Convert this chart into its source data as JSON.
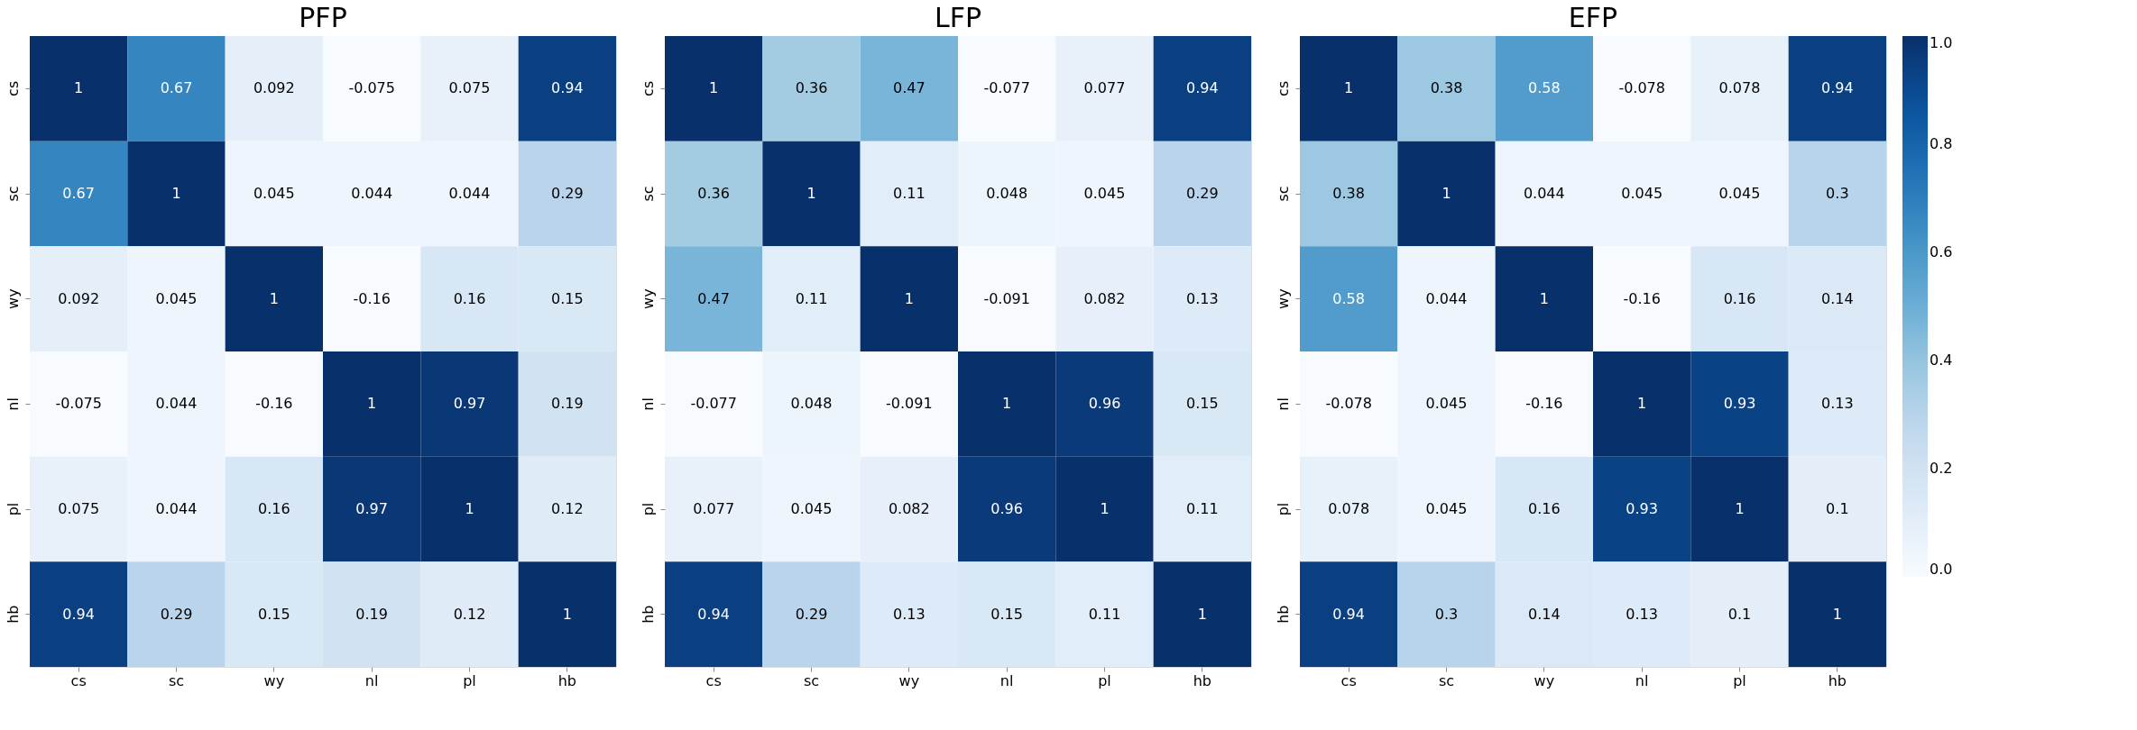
{
  "chart_data": [
    {
      "type": "heatmap",
      "title": "PFP",
      "categories": [
        "cs",
        "sc",
        "wy",
        "nl",
        "pl",
        "hb"
      ],
      "y_categories": [
        "cs",
        "sc",
        "wy",
        "nl",
        "pl",
        "hb"
      ],
      "data_labels": true,
      "cells": [
        [
          1,
          0.67,
          0.092,
          -0.075,
          0.075,
          0.94
        ],
        [
          0.67,
          1,
          0.045,
          0.044,
          0.044,
          0.29
        ],
        [
          0.092,
          0.045,
          1,
          -0.16,
          0.16,
          0.15
        ],
        [
          -0.075,
          0.044,
          -0.16,
          1,
          0.97,
          0.19
        ],
        [
          0.075,
          0.044,
          0.16,
          0.97,
          1,
          0.12
        ],
        [
          0.94,
          0.29,
          0.15,
          0.19,
          0.12,
          1
        ]
      ]
    },
    {
      "type": "heatmap",
      "title": "LFP",
      "categories": [
        "cs",
        "sc",
        "wy",
        "nl",
        "pl",
        "hb"
      ],
      "y_categories": [
        "cs",
        "sc",
        "wy",
        "nl",
        "pl",
        "hb"
      ],
      "data_labels": true,
      "cells": [
        [
          1,
          0.36,
          0.47,
          -0.077,
          0.077,
          0.94
        ],
        [
          0.36,
          1,
          0.11,
          0.048,
          0.045,
          0.29
        ],
        [
          0.47,
          0.11,
          1,
          -0.091,
          0.082,
          0.13
        ],
        [
          -0.077,
          0.048,
          -0.091,
          1,
          0.96,
          0.15
        ],
        [
          0.077,
          0.045,
          0.082,
          0.96,
          1,
          0.11
        ],
        [
          0.94,
          0.29,
          0.13,
          0.15,
          0.11,
          1
        ]
      ]
    },
    {
      "type": "heatmap",
      "title": "EFP",
      "categories": [
        "cs",
        "sc",
        "wy",
        "nl",
        "pl",
        "hb"
      ],
      "y_categories": [
        "cs",
        "sc",
        "wy",
        "nl",
        "pl",
        "hb"
      ],
      "data_labels": true,
      "clim": [
        0,
        1
      ],
      "cticks": [
        {
          "value": 0,
          "label": "0.0"
        },
        {
          "value": 0.2,
          "label": "0.2"
        },
        {
          "value": 0.4,
          "label": "0.4"
        },
        {
          "value": 0.6,
          "label": "0.6"
        },
        {
          "value": 0.8,
          "label": "0.8"
        },
        {
          "value": 1,
          "label": "1.0"
        }
      ],
      "cells": [
        [
          1,
          0.38,
          0.58,
          -0.078,
          0.078,
          0.94
        ],
        [
          0.38,
          1,
          0.044,
          0.045,
          0.045,
          0.3
        ],
        [
          0.58,
          0.044,
          1,
          -0.16,
          0.16,
          0.14
        ],
        [
          -0.078,
          0.045,
          -0.16,
          1,
          0.93,
          0.13
        ],
        [
          0.078,
          0.045,
          0.16,
          0.93,
          1,
          0.1
        ],
        [
          0.94,
          0.3,
          0.14,
          0.13,
          0.1,
          1
        ]
      ]
    }
  ]
}
